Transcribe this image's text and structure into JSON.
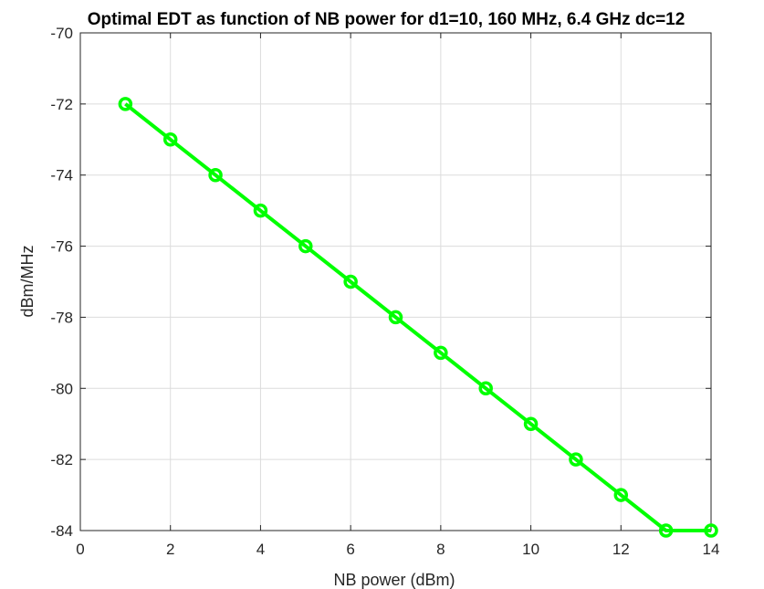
{
  "chart_data": {
    "type": "line",
    "title": "Optimal EDT as function of NB power for d1=10, 160 MHz, 6.4 GHz dc=12",
    "xlabel": "NB power (dBm)",
    "ylabel": "dBm/MHz",
    "xlim": [
      0,
      14
    ],
    "ylim": [
      -84,
      -70
    ],
    "xticks": [
      0,
      2,
      4,
      6,
      8,
      10,
      12,
      14
    ],
    "yticks": [
      -84,
      -82,
      -80,
      -78,
      -76,
      -74,
      -72,
      -70
    ],
    "grid": true,
    "series": [
      {
        "color": "#00ff00",
        "marker": "circle",
        "x": [
          1,
          2,
          3,
          4,
          5,
          6,
          7,
          8,
          9,
          10,
          11,
          12,
          13,
          14
        ],
        "y": [
          -72,
          -73,
          -74,
          -75,
          -76,
          -77,
          -78,
          -79,
          -80,
          -81,
          -82,
          -83,
          -84,
          -84
        ]
      }
    ]
  }
}
